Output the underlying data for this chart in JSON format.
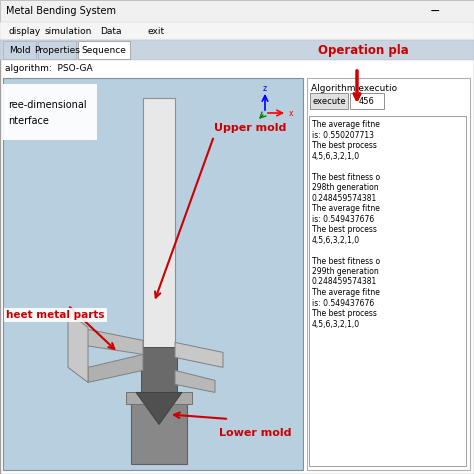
{
  "title_bar": "Metal Bending System",
  "menu_items": [
    "display",
    "simulation",
    "Data",
    "exit"
  ],
  "tabs": [
    "Mold",
    "Properties",
    "Sequence"
  ],
  "active_tab": "Sequence",
  "algorithm_label": "algorithm:  PSO-GA",
  "left_panel_label_1": "ree-dimensional",
  "left_panel_label_2": "nterface",
  "upper_mold_label": "Upper mold",
  "sheet_metal_label": "heet metal parts",
  "lower_mold_label": "Lower mold",
  "operation_plan_label": "Operation pla",
  "algorithm_execution_label": "Algorithm executio",
  "execute_button": "execute",
  "execute_value": "456",
  "bg_color": "#f2f2f2",
  "window_bg": "#ffffff",
  "left_panel_bg": "#b8cfe0",
  "right_panel_bg": "#ffffff",
  "title_bar_bg": "#f0f0f0",
  "menu_bar_bg": "#f8f8f8",
  "tab_bar_bg": "#c8d4e0",
  "active_tab_bg": "#ffffff",
  "text_color": "#000000",
  "red_color": "#cc0000",
  "right_text_lines": [
    "The average fitne",
    "is: 0.550207713",
    "The best process",
    "4,5,6,3,2,1,0",
    "",
    "The best fitness o",
    "298th generation",
    "0.248459574381",
    "The average fitne",
    "is: 0.549437676",
    "The best process",
    "4,5,6,3,2,1,0",
    "",
    "The best fitness o",
    "299th generation",
    "0.248459574381",
    "The average fitne",
    "is: 0.549437676",
    "The best process",
    "4,5,6,3,2,1,0"
  ]
}
